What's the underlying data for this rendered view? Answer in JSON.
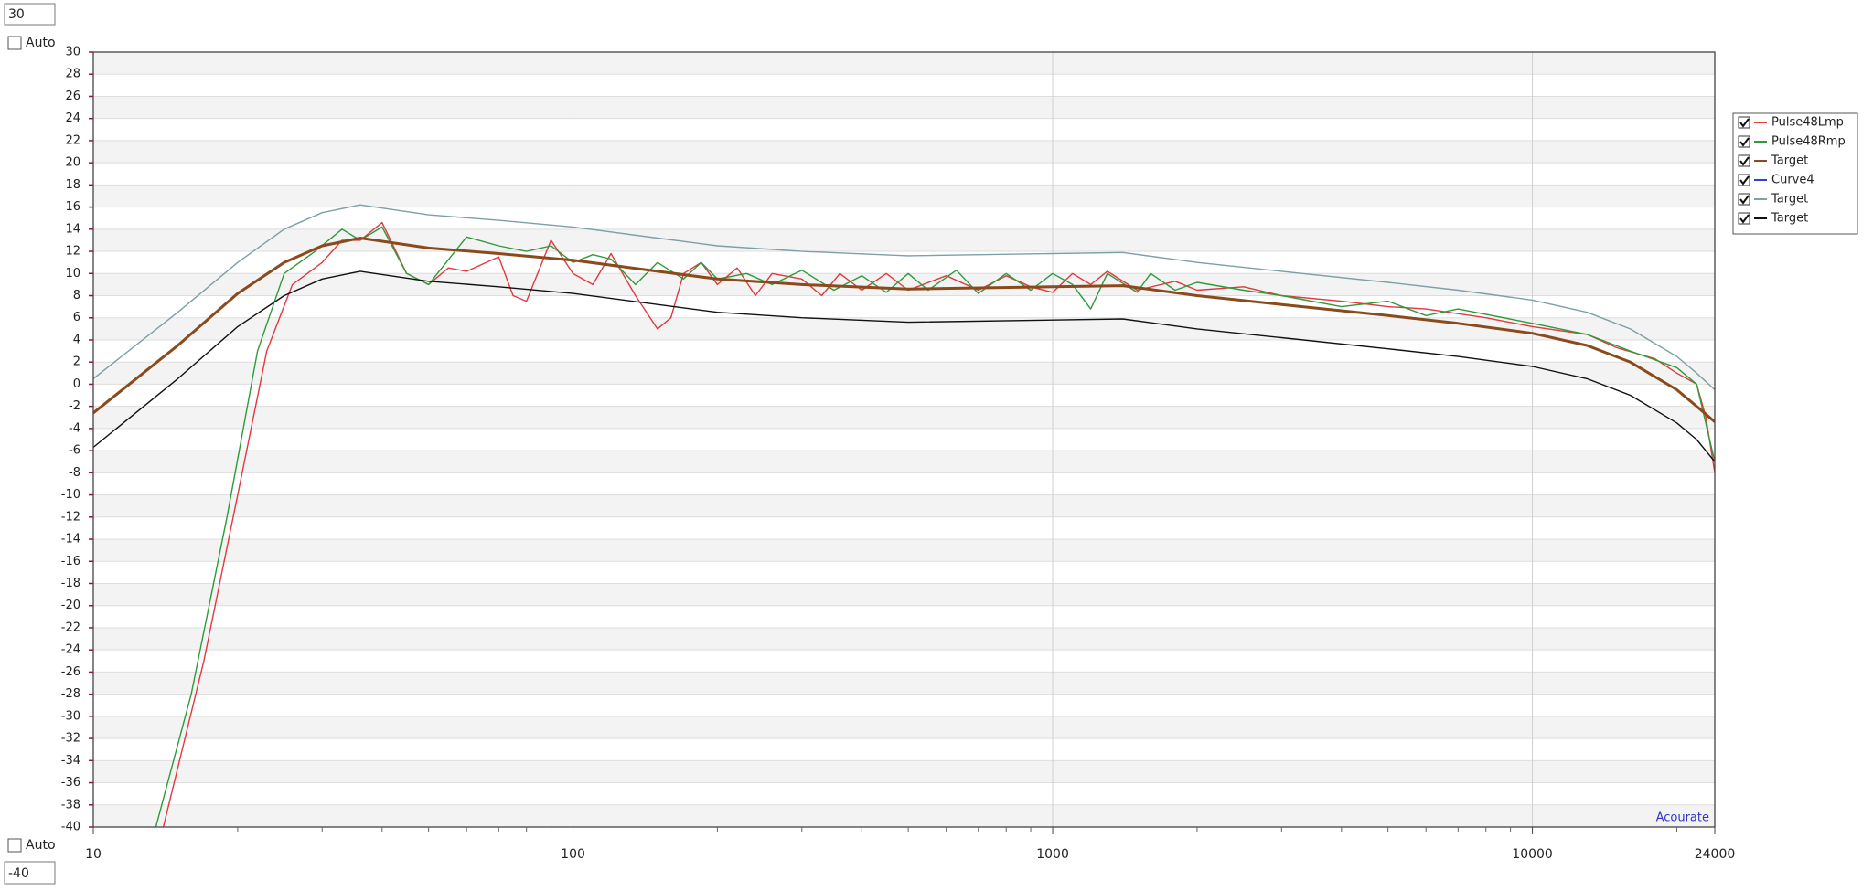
{
  "controls": {
    "top_auto": "Auto",
    "bottom_auto": "Auto",
    "watermark": "Acourate"
  },
  "chart_data": {
    "type": "line",
    "xscale": "log",
    "grid": true,
    "legend": "right",
    "xlim": [
      10,
      24000
    ],
    "xticks": [
      10,
      100,
      1000,
      10000,
      24000
    ],
    "ylim": [
      -40,
      30
    ],
    "yticks": [
      -40,
      -38,
      -36,
      -34,
      -32,
      -30,
      -28,
      -26,
      -24,
      -22,
      -20,
      -18,
      -16,
      -14,
      -12,
      -10,
      -8,
      -6,
      -4,
      -2,
      0,
      2,
      4,
      6,
      8,
      10,
      12,
      14,
      16,
      18,
      20,
      22,
      24,
      26,
      28,
      30
    ],
    "series": [
      {
        "name": "Pulse48Lmp",
        "color": "#e0393e",
        "x": [
          14,
          17,
          20,
          23,
          26,
          30,
          33,
          36,
          40,
          45,
          50,
          55,
          60,
          70,
          75,
          80,
          90,
          100,
          110,
          120,
          135,
          150,
          160,
          170,
          185,
          200,
          220,
          240,
          260,
          300,
          330,
          360,
          400,
          450,
          500,
          600,
          700,
          800,
          900,
          1000,
          1100,
          1200,
          1300,
          1500,
          1800,
          2000,
          2500,
          3000,
          4000,
          5000,
          6000,
          8000,
          10000,
          13000,
          15000,
          18000,
          20000,
          22000,
          23000,
          24000
        ],
        "values": [
          -40,
          -25,
          -10,
          3,
          9,
          11,
          13,
          13,
          14.6,
          10,
          9,
          10.5,
          10.2,
          11.5,
          8,
          7.5,
          13,
          10,
          9,
          11.8,
          8,
          5,
          6,
          10,
          11,
          9,
          10.5,
          8,
          10,
          9.5,
          8,
          10,
          8.5,
          10,
          8.5,
          9.8,
          8.5,
          9.8,
          8.8,
          8.3,
          10,
          9,
          10.2,
          8.5,
          9.3,
          8.5,
          8.8,
          8,
          7.5,
          7,
          6.8,
          6,
          5.2,
          4.5,
          3.3,
          2.3,
          1,
          0,
          -3,
          -8
        ]
      },
      {
        "name": "Pulse48Rmp",
        "color": "#2e9a3a",
        "x": [
          13.5,
          16,
          19,
          22,
          25,
          29,
          33,
          36,
          40,
          45,
          50,
          60,
          70,
          80,
          90,
          100,
          110,
          120,
          135,
          150,
          170,
          185,
          200,
          230,
          260,
          300,
          350,
          400,
          450,
          500,
          550,
          630,
          700,
          800,
          900,
          1000,
          1100,
          1200,
          1300,
          1500,
          1600,
          1800,
          2000,
          2500,
          3000,
          4000,
          5000,
          6000,
          7000,
          10000,
          13000,
          16000,
          20000,
          22000,
          24000
        ],
        "values": [
          -40,
          -28,
          -12,
          3,
          10,
          12,
          14,
          13,
          14.2,
          10,
          9,
          13.3,
          12.5,
          12,
          12.5,
          11,
          11.7,
          11.3,
          9,
          11,
          9.5,
          11,
          9.5,
          10,
          9,
          10.3,
          8.5,
          9.8,
          8.3,
          10,
          8.5,
          10.3,
          8.2,
          10,
          8.5,
          10,
          9,
          6.8,
          10,
          8.3,
          10,
          8.5,
          9.2,
          8.5,
          8,
          7,
          7.5,
          6.2,
          6.8,
          5.5,
          4.5,
          3,
          1.5,
          0,
          -7
        ]
      },
      {
        "name": "Target",
        "color": "#8b4a1c",
        "width": 3,
        "x": [
          10,
          15,
          20,
          25,
          30,
          36,
          50,
          70,
          100,
          150,
          200,
          300,
          500,
          1000,
          1400,
          2000,
          3000,
          5000,
          7000,
          10000,
          13000,
          16000,
          20000,
          22000,
          24000
        ],
        "values": [
          -2.6,
          3.5,
          8.2,
          11,
          12.5,
          13.2,
          12.3,
          11.8,
          11.2,
          10.2,
          9.5,
          9,
          8.6,
          8.8,
          8.9,
          8,
          7.2,
          6.2,
          5.5,
          4.6,
          3.5,
          2,
          -0.5,
          -2,
          -3.4
        ]
      },
      {
        "name": "Curve4",
        "color": "#3b3bd6",
        "x": [],
        "values": []
      },
      {
        "name": "Target",
        "color": "#7d9fa6",
        "x": [
          10,
          15,
          20,
          25,
          30,
          36,
          50,
          70,
          100,
          150,
          200,
          300,
          500,
          1000,
          1400,
          2000,
          3000,
          5000,
          7000,
          10000,
          13000,
          16000,
          20000,
          22000,
          24000
        ],
        "values": [
          0.5,
          6.5,
          11,
          14,
          15.5,
          16.2,
          15.3,
          14.8,
          14.2,
          13.2,
          12.5,
          12,
          11.6,
          11.8,
          11.9,
          11,
          10.2,
          9.2,
          8.5,
          7.6,
          6.5,
          5,
          2.5,
          1,
          -0.5
        ]
      },
      {
        "name": "Target",
        "color": "#111111",
        "x": [
          10,
          15,
          20,
          25,
          30,
          36,
          50,
          70,
          100,
          150,
          200,
          300,
          500,
          1000,
          1400,
          2000,
          3000,
          5000,
          7000,
          10000,
          13000,
          16000,
          20000,
          22000,
          24000
        ],
        "values": [
          -5.7,
          0.5,
          5.2,
          8,
          9.5,
          10.2,
          9.3,
          8.8,
          8.2,
          7.2,
          6.5,
          6,
          5.6,
          5.8,
          5.9,
          5,
          4.2,
          3.2,
          2.5,
          1.6,
          0.5,
          -1,
          -3.5,
          -5,
          -7
        ]
      }
    ]
  }
}
